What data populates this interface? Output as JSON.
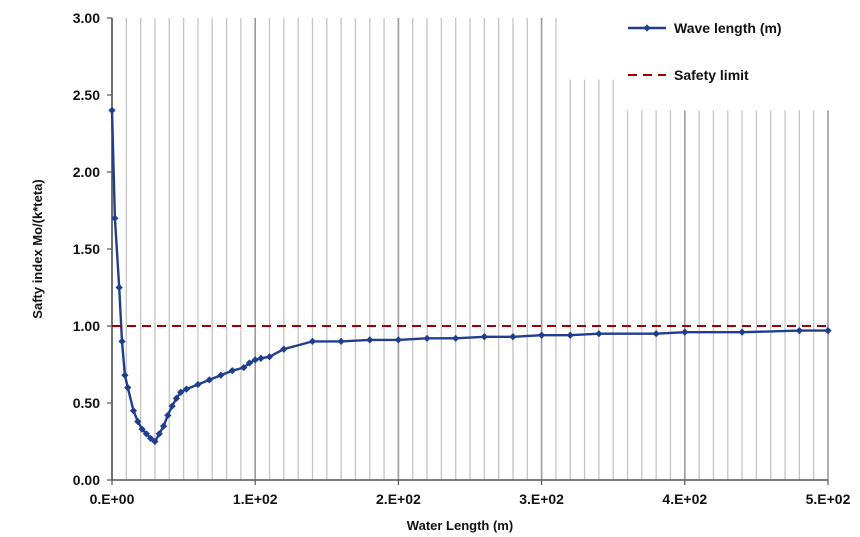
{
  "chart_data": {
    "type": "line",
    "xlabel": "Water Length (m)",
    "ylabel": "Safty index  Mo/(k*teta)",
    "xlim": [
      0,
      500
    ],
    "ylim": [
      0,
      3
    ],
    "x_tick_values": [
      0,
      100,
      200,
      300,
      400,
      500
    ],
    "x_tick_labels": [
      "0.E+00",
      "1.E+02",
      "2.E+02",
      "3.E+02",
      "4.E+02",
      "5.E+02"
    ],
    "y_tick_values": [
      0,
      0.5,
      1,
      1.5,
      2,
      2.5,
      3
    ],
    "y_tick_labels": [
      "0.00",
      "0.50",
      "1.00",
      "1.50",
      "2.00",
      "2.50",
      "3.00"
    ],
    "grid": "vertical",
    "legend_position": "top-right",
    "series": [
      {
        "name": "Wave length (m)",
        "color": "#1f3e8f",
        "marker": "diamond",
        "x": [
          0,
          2,
          5,
          7,
          9,
          11,
          15,
          18,
          21,
          24,
          27,
          30,
          33,
          36,
          39,
          42,
          45,
          48,
          52,
          60,
          68,
          76,
          84,
          92,
          96,
          100,
          104,
          110,
          120,
          140,
          160,
          180,
          200,
          220,
          240,
          260,
          280,
          300,
          320,
          340,
          380,
          400,
          440,
          480,
          500
        ],
        "y": [
          2.4,
          1.7,
          1.25,
          0.9,
          0.68,
          0.6,
          0.45,
          0.38,
          0.33,
          0.3,
          0.27,
          0.25,
          0.3,
          0.35,
          0.42,
          0.48,
          0.53,
          0.57,
          0.59,
          0.62,
          0.65,
          0.68,
          0.71,
          0.73,
          0.76,
          0.78,
          0.79,
          0.8,
          0.85,
          0.9,
          0.9,
          0.91,
          0.91,
          0.92,
          0.92,
          0.93,
          0.93,
          0.94,
          0.94,
          0.95,
          0.95,
          0.96,
          0.96,
          0.97,
          0.97
        ]
      },
      {
        "name": "Safety limit",
        "color": "#a00000",
        "style": "dashed",
        "x": [
          0,
          500
        ],
        "y": [
          1,
          1
        ]
      }
    ]
  }
}
